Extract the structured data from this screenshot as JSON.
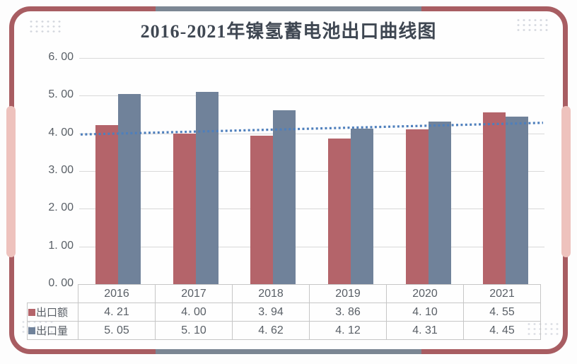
{
  "title": "2016-2021年镍氢蓄电池出口曲线图",
  "colors": {
    "frame": "#a85d62",
    "frame_accent_gray": "#7b8693",
    "frame_accent_pink": "#eec2bd",
    "bar_export_value": "#b4646a",
    "bar_export_volume": "#70829a",
    "trendline": "#4e7fbc",
    "title_text": "#3f4752",
    "axis_text": "#595f66",
    "gridline": "#d9d9d9",
    "table_border": "#c6c6c6"
  },
  "chart_data": {
    "type": "bar",
    "title": "2016-2021年镍氢蓄电池出口曲线图",
    "categories": [
      "2016",
      "2017",
      "2018",
      "2019",
      "2020",
      "2021"
    ],
    "series": [
      {
        "name": "出口额",
        "color": "#b4646a",
        "values": [
          4.21,
          4.0,
          3.94,
          3.86,
          4.1,
          4.55
        ]
      },
      {
        "name": "出口量",
        "color": "#70829a",
        "values": [
          5.05,
          5.1,
          4.62,
          4.12,
          4.31,
          4.45
        ]
      }
    ],
    "trendline": {
      "type": "linear-dotted",
      "start_value": 3.97,
      "end_value": 4.28,
      "color": "#4e7fbc"
    },
    "ylim": [
      0,
      6
    ],
    "ytick_step": 1,
    "ytick_labels_top_to_bottom": [
      "6. 00",
      "5. 00",
      "4. 00",
      "3. 00",
      "2. 00",
      "1. 00",
      "0. 00"
    ],
    "grid": true,
    "legend_position": "table-row-headers"
  },
  "table": {
    "year_headers": [
      "2016",
      "2017",
      "2018",
      "2019",
      "2020",
      "2021"
    ],
    "rows": [
      {
        "label": "出口额",
        "marker_color": "#b4646a",
        "cells": [
          "4. 21",
          "4. 00",
          "3. 94",
          "3. 86",
          "4. 10",
          "4. 55"
        ]
      },
      {
        "label": "出口量",
        "marker_color": "#70829a",
        "cells": [
          "5. 05",
          "5. 10",
          "4. 62",
          "4. 12",
          "4. 31",
          "4. 45"
        ]
      }
    ]
  }
}
